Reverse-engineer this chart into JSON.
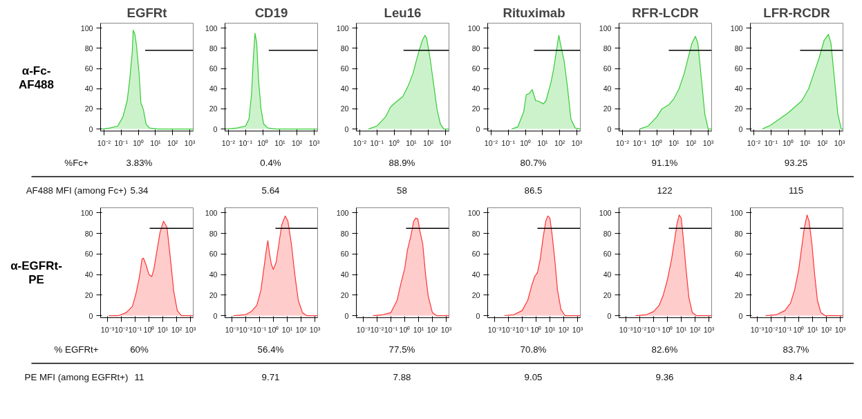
{
  "chart_data": [
    {
      "type": "area",
      "title": "EGFRt",
      "ylabel": "α-Fc-\nAF488",
      "log": "x",
      "xlim": [
        0.00631,
        1585
      ],
      "ylim": [
        -2,
        105
      ],
      "xticks": [
        {
          "value": 0.01,
          "label": "10⁻²"
        },
        {
          "value": 0.1,
          "label": "10⁻¹"
        },
        {
          "value": 1,
          "label": "10⁰"
        },
        {
          "value": 10,
          "label": "10¹"
        },
        {
          "value": 100,
          "label": "10²"
        },
        {
          "value": 1000,
          "label": "10³"
        }
      ],
      "yticks": [
        0,
        20,
        40,
        60,
        80,
        100
      ],
      "series": [
        {
          "type": "area",
          "color": "#33cc33",
          "x": [
            0.00794,
            0.0224,
            0.0631,
            0.126,
            0.224,
            0.316,
            0.447,
            0.501,
            0.631,
            0.794,
            1.12,
            1.41,
            2.0,
            2.82,
            4.47,
            14.1,
            1585
          ],
          "values": [
            0,
            1,
            3,
            12,
            28,
            49,
            77,
            98,
            94,
            82,
            54,
            26,
            19,
            5,
            1,
            0,
            0
          ]
        },
        {
          "type": "line",
          "color": "#000000",
          "x": [
            2.51,
            1585
          ],
          "values": [
            78,
            78
          ]
        }
      ]
    },
    {
      "type": "area",
      "title": "CD19",
      "log": "x",
      "xlim": [
        0.00631,
        1585
      ],
      "ylim": [
        -2,
        105
      ],
      "xticks": [
        {
          "value": 0.01,
          "label": "10⁻²"
        },
        {
          "value": 0.1,
          "label": "10⁻¹"
        },
        {
          "value": 1,
          "label": "10⁰"
        },
        {
          "value": 10,
          "label": "10¹"
        },
        {
          "value": 100,
          "label": "10²"
        },
        {
          "value": 1000,
          "label": "10³"
        }
      ],
      "yticks": [
        0,
        20,
        40,
        60,
        80,
        100
      ],
      "series": [
        {
          "type": "area",
          "color": "#33cc33",
          "x": [
            0.00794,
            0.0316,
            0.1,
            0.158,
            0.224,
            0.282,
            0.355,
            0.447,
            0.562,
            0.794,
            1.12,
            2.0,
            6.31,
            1585
          ],
          "values": [
            0,
            1,
            3,
            10,
            35,
            70,
            95,
            85,
            50,
            20,
            5,
            1,
            0,
            0
          ]
        },
        {
          "type": "line",
          "color": "#000000",
          "x": [
            2.24,
            1585
          ],
          "values": [
            78,
            78
          ]
        }
      ]
    },
    {
      "type": "area",
      "title": "Leu16",
      "log": "x",
      "xlim": [
        0.00631,
        1585
      ],
      "ylim": [
        -2,
        105
      ],
      "xticks": [
        {
          "value": 0.01,
          "label": "10⁻²"
        },
        {
          "value": 0.1,
          "label": "10⁻¹"
        },
        {
          "value": 1,
          "label": "10⁰"
        },
        {
          "value": 10,
          "label": "10¹"
        },
        {
          "value": 100,
          "label": "10²"
        },
        {
          "value": 1000,
          "label": "10³"
        }
      ],
      "yticks": [
        0,
        20,
        40,
        60,
        80,
        100
      ],
      "series": [
        {
          "type": "area",
          "color": "#33cc33",
          "x": [
            0.0316,
            0.1,
            0.316,
            0.631,
            1.58,
            3.16,
            6.31,
            12.6,
            20,
            31.6,
            44.7,
            63.1,
            79.4,
            126,
            200,
            316,
            501,
            794,
            1585
          ],
          "values": [
            0,
            3,
            12,
            22,
            28,
            32,
            42,
            55,
            68,
            80,
            88,
            93,
            90,
            70,
            45,
            20,
            5,
            0,
            0
          ]
        },
        {
          "type": "line",
          "color": "#000000",
          "x": [
            3.55,
            1585
          ],
          "values": [
            78,
            78
          ]
        }
      ]
    },
    {
      "type": "area",
      "title": "Rituximab",
      "log": "x",
      "xlim": [
        0.00631,
        1585
      ],
      "ylim": [
        -2,
        105
      ],
      "xticks": [
        {
          "value": 0.01,
          "label": "10⁻²"
        },
        {
          "value": 0.1,
          "label": "10⁻¹"
        },
        {
          "value": 1,
          "label": "10⁰"
        },
        {
          "value": 10,
          "label": "10¹"
        },
        {
          "value": 100,
          "label": "10²"
        },
        {
          "value": 1000,
          "label": "10³"
        }
      ],
      "yticks": [
        0,
        20,
        40,
        60,
        80,
        100
      ],
      "series": [
        {
          "type": "area",
          "color": "#33cc33",
          "x": [
            0.158,
            0.355,
            0.794,
            1.12,
            1.58,
            2.51,
            3.98,
            5.01,
            11.2,
            15.8,
            31.6,
            44.7,
            63.1,
            89.1,
            112,
            178,
            282,
            447,
            794,
            1585
          ],
          "values": [
            0,
            2,
            17,
            34,
            35,
            39,
            28,
            28,
            25,
            28,
            47,
            60,
            77,
            93,
            84,
            68,
            42,
            10,
            1,
            0
          ]
        },
        {
          "type": "line",
          "color": "#000000",
          "x": [
            3.16,
            1585
          ],
          "values": [
            78,
            78
          ]
        }
      ]
    },
    {
      "type": "area",
      "title": "RFR-LCDR",
      "log": "x",
      "xlim": [
        0.00631,
        1585
      ],
      "ylim": [
        -2,
        105
      ],
      "xticks": [
        {
          "value": 0.01,
          "label": "10⁻²"
        },
        {
          "value": 0.1,
          "label": "10⁻¹"
        },
        {
          "value": 1,
          "label": "10⁰"
        },
        {
          "value": 10,
          "label": "10¹"
        },
        {
          "value": 100,
          "label": "10²"
        },
        {
          "value": 1000,
          "label": "10³"
        }
      ],
      "yticks": [
        0,
        20,
        40,
        60,
        80,
        100
      ],
      "series": [
        {
          "type": "area",
          "color": "#33cc33",
          "x": [
            0.1,
            0.316,
            1,
            2.0,
            5.01,
            10,
            20,
            39.8,
            70.8,
            112,
            178,
            251,
            398,
            631,
            1000,
            1585
          ],
          "values": [
            0,
            3,
            12,
            20,
            24,
            30,
            40,
            55,
            72,
            85,
            92,
            85,
            50,
            15,
            0,
            0
          ]
        },
        {
          "type": "line",
          "color": "#000000",
          "x": [
            5.01,
            1585
          ],
          "values": [
            78,
            78
          ]
        }
      ]
    },
    {
      "type": "area",
      "title": "LFR-RCDR",
      "log": "x",
      "xlim": [
        0.00631,
        1585
      ],
      "ylim": [
        -2,
        105
      ],
      "xticks": [
        {
          "value": 0.01,
          "label": "10⁻²"
        },
        {
          "value": 0.1,
          "label": "10⁻¹"
        },
        {
          "value": 1,
          "label": "10⁰"
        },
        {
          "value": 10,
          "label": "10¹"
        },
        {
          "value": 100,
          "label": "10²"
        },
        {
          "value": 1000,
          "label": "10³"
        }
      ],
      "yticks": [
        0,
        20,
        40,
        60,
        80,
        100
      ],
      "series": [
        {
          "type": "area",
          "color": "#33cc33",
          "x": [
            0.0316,
            0.1,
            0.316,
            1,
            2.51,
            6.31,
            15.8,
            31.6,
            63.1,
            126,
            224,
            316,
            501,
            794,
            1259,
            1585
          ],
          "values": [
            0,
            4,
            10,
            16,
            22,
            28,
            40,
            55,
            70,
            88,
            94,
            85,
            50,
            15,
            0,
            0
          ]
        },
        {
          "type": "line",
          "color": "#000000",
          "x": [
            5.01,
            1585
          ],
          "values": [
            78,
            78
          ]
        }
      ]
    },
    {
      "type": "other",
      "y_categories": [
        "%Fc+",
        "AF488 MFI (among Fc+)"
      ],
      "cell_labels": [
        [
          "3.83%",
          "0.4%",
          "88.9%",
          "80.7%",
          "91.1%",
          "93.25"
        ],
        [
          "5.34",
          "5.64",
          "58",
          "86.5",
          "122",
          "115"
        ]
      ]
    },
    {
      "type": "area",
      "ylabel": "α-EGFRt-\nPE",
      "log": "x",
      "xlim": [
        0.000316,
        1585
      ],
      "ylim": [
        -2,
        105
      ],
      "xticks": [
        {
          "value": 0.001,
          "label": "10⁻³"
        },
        {
          "value": 0.01,
          "label": "10⁻²"
        },
        {
          "value": 0.1,
          "label": "10⁻¹"
        },
        {
          "value": 1,
          "label": "10⁰"
        },
        {
          "value": 10,
          "label": "10¹"
        },
        {
          "value": 100,
          "label": "10²"
        },
        {
          "value": 1000,
          "label": "10³"
        }
      ],
      "yticks": [
        0,
        20,
        40,
        60,
        80,
        100
      ],
      "series": [
        {
          "type": "area",
          "color": "#ff3333",
          "x": [
            0.00126,
            0.00631,
            0.0224,
            0.0631,
            0.112,
            0.2,
            0.316,
            0.398,
            0.631,
            1,
            1.58,
            2.24,
            3.55,
            6.31,
            11.2,
            20,
            31.6,
            63.1,
            112,
            224,
            1585
          ],
          "values": [
            0,
            0,
            3,
            9,
            21,
            37,
            55,
            56,
            49,
            40,
            38,
            45,
            61,
            81,
            92,
            86,
            62,
            23,
            5,
            0,
            0
          ]
        },
        {
          "type": "line",
          "color": "#000000",
          "x": [
            1.12,
            1585
          ],
          "values": [
            85,
            85
          ]
        }
      ]
    },
    {
      "type": "area",
      "log": "x",
      "xlim": [
        0.000316,
        1585
      ],
      "ylim": [
        -2,
        105
      ],
      "xticks": [
        {
          "value": 0.001,
          "label": "10⁻³"
        },
        {
          "value": 0.01,
          "label": "10⁻²"
        },
        {
          "value": 0.1,
          "label": "10⁻¹"
        },
        {
          "value": 1,
          "label": "10⁰"
        },
        {
          "value": 10,
          "label": "10¹"
        },
        {
          "value": 100,
          "label": "10²"
        },
        {
          "value": 1000,
          "label": "10³"
        }
      ],
      "yticks": [
        0,
        20,
        40,
        60,
        80,
        100
      ],
      "series": [
        {
          "type": "area",
          "color": "#ff3333",
          "x": [
            0.00126,
            0.01,
            0.0251,
            0.0631,
            0.126,
            0.2,
            0.316,
            0.398,
            0.501,
            0.708,
            1,
            1.58,
            2.51,
            3.98,
            7.08,
            11.2,
            20,
            35.5,
            63.1,
            126,
            251,
            1585
          ],
          "values": [
            0,
            1,
            4,
            10,
            25,
            45,
            65,
            73,
            62,
            50,
            45,
            52,
            70,
            88,
            97,
            92,
            70,
            40,
            15,
            3,
            0,
            0
          ]
        },
        {
          "type": "line",
          "color": "#000000",
          "x": [
            1.41,
            1585
          ],
          "values": [
            85,
            85
          ]
        }
      ]
    },
    {
      "type": "area",
      "log": "x",
      "xlim": [
        0.000316,
        1585
      ],
      "ylim": [
        -2,
        105
      ],
      "xticks": [
        {
          "value": 0.001,
          "label": "10⁻³"
        },
        {
          "value": 0.01,
          "label": "10⁻²"
        },
        {
          "value": 0.1,
          "label": "10⁻¹"
        },
        {
          "value": 1,
          "label": "10⁰"
        },
        {
          "value": 10,
          "label": "10¹"
        },
        {
          "value": 100,
          "label": "10²"
        },
        {
          "value": 1000,
          "label": "10³"
        }
      ],
      "yticks": [
        0,
        20,
        40,
        60,
        80,
        100
      ],
      "series": [
        {
          "type": "area",
          "color": "#ff3333",
          "x": [
            0.00501,
            0.0282,
            0.1,
            0.282,
            0.501,
            1,
            1.58,
            2.82,
            4.47,
            6.31,
            8.91,
            12.6,
            20,
            31.6,
            50.1,
            100,
            200,
            1585
          ],
          "values": [
            0,
            1,
            3,
            15,
            30,
            46,
            64,
            78,
            92,
            95,
            94,
            82,
            70,
            41,
            19,
            3,
            0,
            0
          ]
        },
        {
          "type": "line",
          "color": "#000000",
          "x": [
            1.26,
            1585
          ],
          "values": [
            85,
            85
          ]
        }
      ]
    },
    {
      "type": "area",
      "log": "x",
      "xlim": [
        0.000316,
        1585
      ],
      "ylim": [
        -2,
        105
      ],
      "xticks": [
        {
          "value": 0.001,
          "label": "10⁻³"
        },
        {
          "value": 0.01,
          "label": "10⁻²"
        },
        {
          "value": 0.1,
          "label": "10⁻¹"
        },
        {
          "value": 1,
          "label": "10⁰"
        },
        {
          "value": 10,
          "label": "10¹"
        },
        {
          "value": 100,
          "label": "10²"
        },
        {
          "value": 1000,
          "label": "10³"
        }
      ],
      "yticks": [
        0,
        20,
        40,
        60,
        80,
        100
      ],
      "series": [
        {
          "type": "area",
          "color": "#ff3333",
          "x": [
            0.00501,
            0.0251,
            0.1,
            0.251,
            0.501,
            0.794,
            1.26,
            2.0,
            3.16,
            5.01,
            7.08,
            10,
            14.1,
            22.4,
            35.5,
            63.1,
            126,
            1585
          ],
          "values": [
            0,
            1,
            5,
            15,
            30,
            38,
            42,
            55,
            75,
            92,
            97,
            95,
            80,
            55,
            25,
            6,
            0,
            0
          ]
        },
        {
          "type": "line",
          "color": "#000000",
          "x": [
            1.26,
            1585
          ],
          "values": [
            85,
            85
          ]
        }
      ]
    },
    {
      "type": "area",
      "log": "x",
      "xlim": [
        0.000316,
        1585
      ],
      "ylim": [
        -2,
        105
      ],
      "xticks": [
        {
          "value": 0.001,
          "label": "10⁻³"
        },
        {
          "value": 0.01,
          "label": "10⁻²"
        },
        {
          "value": 0.1,
          "label": "10⁻¹"
        },
        {
          "value": 1,
          "label": "10⁰"
        },
        {
          "value": 10,
          "label": "10¹"
        },
        {
          "value": 100,
          "label": "10²"
        },
        {
          "value": 1000,
          "label": "10³"
        }
      ],
      "yticks": [
        0,
        20,
        40,
        60,
        80,
        100
      ],
      "series": [
        {
          "type": "area",
          "color": "#ff3333",
          "x": [
            0.00501,
            0.0316,
            0.1,
            0.251,
            0.501,
            1,
            2.0,
            3.16,
            5.01,
            7.08,
            10,
            14.1,
            22.4,
            35.5,
            63.1,
            126,
            1585
          ],
          "values": [
            0,
            1,
            4,
            10,
            20,
            35,
            55,
            72,
            90,
            98,
            95,
            75,
            45,
            18,
            3,
            0,
            0
          ]
        },
        {
          "type": "line",
          "color": "#000000",
          "x": [
            1.26,
            1585
          ],
          "values": [
            85,
            85
          ]
        }
      ]
    },
    {
      "type": "area",
      "log": "x",
      "xlim": [
        0.000316,
        1585
      ],
      "ylim": [
        -2,
        105
      ],
      "xticks": [
        {
          "value": 0.001,
          "label": "10⁻³"
        },
        {
          "value": 0.01,
          "label": "10⁻²"
        },
        {
          "value": 0.1,
          "label": "10⁻¹"
        },
        {
          "value": 1,
          "label": "10⁰"
        },
        {
          "value": 10,
          "label": "10¹"
        },
        {
          "value": 100,
          "label": "10²"
        },
        {
          "value": 1000,
          "label": "10³"
        }
      ],
      "yticks": [
        0,
        20,
        40,
        60,
        80,
        100
      ],
      "series": [
        {
          "type": "area",
          "color": "#ff3333",
          "x": [
            0.00398,
            0.0251,
            0.1,
            0.251,
            0.501,
            1,
            1.58,
            2.51,
            3.98,
            5.62,
            8.91,
            14.1,
            22.4,
            39.8,
            79.4,
            1585
          ],
          "values": [
            0,
            1,
            5,
            12,
            25,
            45,
            65,
            85,
            98,
            92,
            70,
            40,
            15,
            3,
            0,
            0
          ]
        },
        {
          "type": "line",
          "color": "#000000",
          "x": [
            1.26,
            1585
          ],
          "values": [
            85,
            85
          ]
        }
      ]
    },
    {
      "type": "other",
      "y_categories": [
        "% EGFRt+",
        "PE MFI (among EGFRt+)"
      ],
      "cell_labels": [
        [
          "60%",
          "56.4%",
          "77.5%",
          "70.8%",
          "82.6%",
          "83.7%"
        ],
        [
          "11",
          "9.71",
          "7.88",
          "9.05",
          "9.36",
          "8.4"
        ]
      ]
    }
  ]
}
